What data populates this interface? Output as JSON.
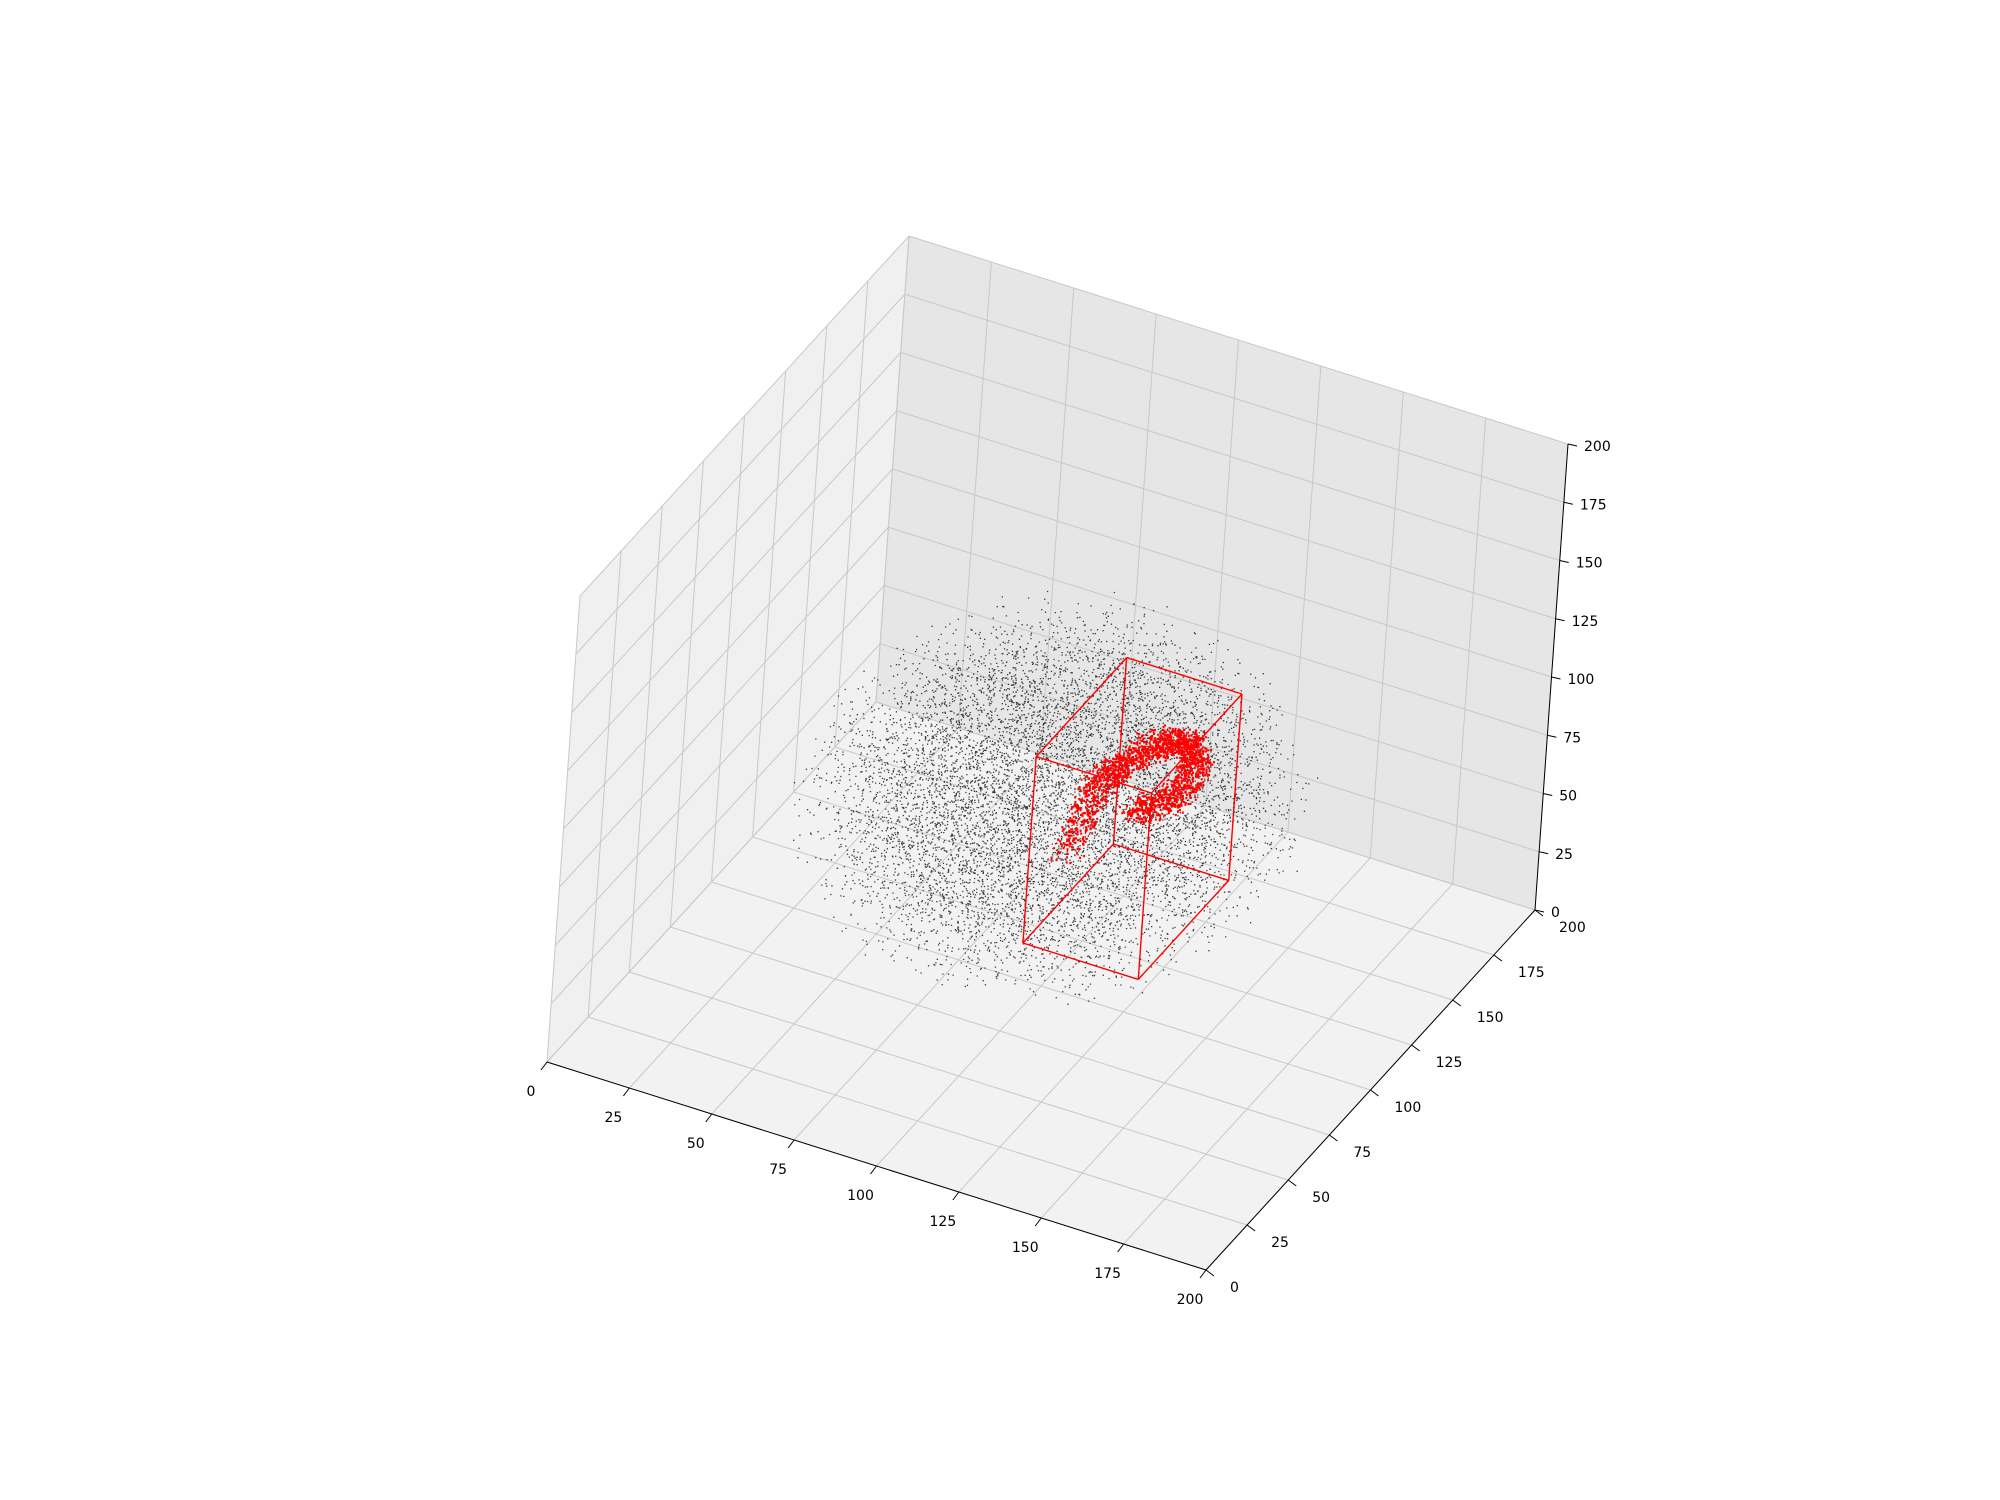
{
  "chart_data": {
    "type": "scatter3d",
    "title": "",
    "xlabel": "",
    "ylabel": "",
    "zlabel": "",
    "xlim": [
      0,
      200
    ],
    "ylim": [
      0,
      200
    ],
    "zlim": [
      0,
      200
    ],
    "x_ticks": [
      "0",
      "25",
      "50",
      "75",
      "100",
      "125",
      "150",
      "175",
      "200"
    ],
    "y_ticks": [
      "0",
      "25",
      "50",
      "75",
      "100",
      "125",
      "150",
      "175",
      "200"
    ],
    "z_ticks": [
      "0",
      "25",
      "50",
      "75",
      "100",
      "125",
      "150",
      "175",
      "200"
    ],
    "grid": true,
    "series": [
      {
        "kind": "point-cloud",
        "color": "#000000",
        "ellipsoid_center": [
          100,
          100,
          80
        ],
        "ellipsoid_radii": [
          72,
          82,
          58
        ]
      },
      {
        "kind": "highlighted-points",
        "color": "#ff0000",
        "curve": [
          [
            112,
            84,
            75
          ],
          [
            116,
            92,
            100
          ],
          [
            120,
            100,
            105
          ],
          [
            126,
            110,
            108
          ],
          [
            130,
            118,
            104
          ],
          [
            132,
            122,
            92
          ],
          [
            128,
            116,
            80
          ],
          [
            120,
            108,
            78
          ]
        ]
      },
      {
        "kind": "bounding-box",
        "color": "#ff0000",
        "x": [
          105,
          140
        ],
        "y": [
          75,
          130
        ],
        "z": [
          40,
          120
        ]
      }
    ],
    "colors": {
      "pane_left": "#f0f0f0",
      "pane_back": "#e6e6e6",
      "pane_floor": "#f2f2f2",
      "grid": "#c8c8c8"
    }
  }
}
